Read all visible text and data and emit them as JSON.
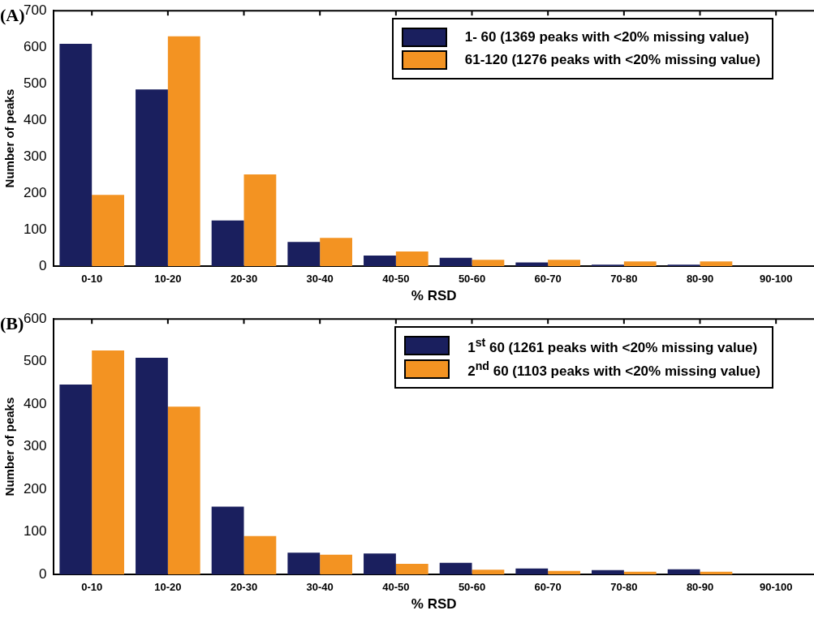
{
  "chart_data": [
    {
      "type": "bar",
      "title": "(A)",
      "xlabel": "% RSD",
      "ylabel": "Number of peaks",
      "categories": [
        "0-10",
        "10-20",
        "20-30",
        "30-40",
        "40-50",
        "50-60",
        "60-70",
        "70-80",
        "80-90",
        "90-100"
      ],
      "series": [
        {
          "name": "1- 60 (1369 peaks with <20% missing value)",
          "color": "#1a1f5e",
          "values": [
            609,
            484,
            125,
            66,
            29,
            23,
            10,
            4,
            4,
            0
          ]
        },
        {
          "name": "61-120 (1276 peaks with <20% missing value)",
          "color": "#f39322",
          "values": [
            195,
            630,
            251,
            77,
            40,
            17,
            17,
            13,
            13,
            0
          ]
        }
      ],
      "ylim": [
        0,
        700
      ],
      "yticks": [
        0,
        100,
        200,
        300,
        400,
        500,
        600,
        700
      ],
      "grid": false,
      "legend": "top right"
    },
    {
      "type": "bar",
      "title": "(B)",
      "xlabel": "% RSD",
      "ylabel": "Number of peaks",
      "categories": [
        "0-10",
        "10-20",
        "20-30",
        "30-40",
        "40-50",
        "50-60",
        "60-70",
        "70-80",
        "80-90",
        "90-100"
      ],
      "series": [
        {
          "name": "1$^{st}$ 60 (1261 peaks with <20% missing value)",
          "color": "#1a1f5e",
          "values": [
            446,
            509,
            159,
            51,
            49,
            27,
            14,
            10,
            12,
            0
          ]
        },
        {
          "name": "2$^{nd}$ 60 (1103 peaks with <20% missing value)",
          "color": "#f39322",
          "values": [
            526,
            394,
            90,
            46,
            25,
            11,
            8,
            6,
            6,
            0
          ]
        }
      ],
      "ylim": [
        0,
        600
      ],
      "yticks": [
        0,
        100,
        200,
        300,
        400,
        500,
        600
      ],
      "grid": false,
      "legend": "top right"
    }
  ]
}
